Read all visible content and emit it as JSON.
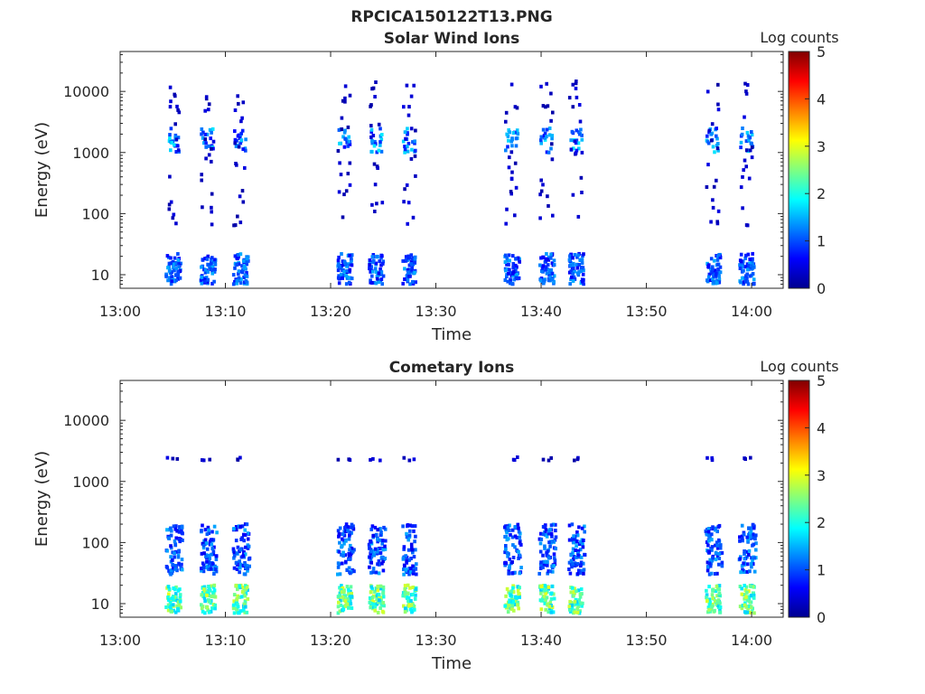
{
  "figure_title": "RPCICA150122T13.PNG",
  "chart_data": [
    {
      "type": "heatmap",
      "title": "Solar Wind Ions",
      "xlabel": "Time",
      "ylabel": "Energy (eV)",
      "y_scale": "log",
      "ylim": [
        6,
        45000
      ],
      "xlim": [
        "13:00",
        "14:03"
      ],
      "x_ticks": [
        "13:00",
        "13:10",
        "13:20",
        "13:30",
        "13:40",
        "13:50",
        "14:00"
      ],
      "y_ticks": [
        "10",
        "100",
        "1000",
        "10000"
      ],
      "colorbar": {
        "label": "Log counts",
        "range": [
          0,
          5
        ],
        "ticks": [
          "0",
          "1",
          "2",
          "3",
          "4",
          "5"
        ],
        "colormap": "jet"
      },
      "grid": false,
      "scans": [
        {
          "start": "13:04",
          "end": "13:13",
          "bursts": [
            "13:04.5",
            "13:07.8",
            "13:10.9"
          ]
        },
        {
          "start": "13:20",
          "end": "13:28",
          "bursts": [
            "13:20.8",
            "13:23.8",
            "13:27.0"
          ]
        },
        {
          "start": "13:35",
          "end": "13:45",
          "bursts": [
            "13:36.7",
            "13:40.0",
            "13:42.8"
          ]
        },
        {
          "start": "13:54",
          "end": "14:01",
          "bursts": [
            "13:55.8",
            "13:59.0"
          ]
        }
      ],
      "features": [
        {
          "energy_range_eV": [
            7,
            22
          ],
          "log_counts_max": 1.5
        },
        {
          "energy_range_eV": [
            1000,
            2500
          ],
          "log_counts_max": 1.8
        },
        {
          "energy_range_eV": [
            60,
            15000
          ],
          "log_counts_max": 0.5
        }
      ]
    },
    {
      "type": "heatmap",
      "title": "Cometary Ions",
      "xlabel": "Time",
      "ylabel": "Energy (eV)",
      "y_scale": "log",
      "ylim": [
        6,
        45000
      ],
      "xlim": [
        "13:00",
        "14:03"
      ],
      "x_ticks": [
        "13:00",
        "13:10",
        "13:20",
        "13:30",
        "13:40",
        "13:50",
        "14:00"
      ],
      "y_ticks": [
        "10",
        "100",
        "1000",
        "10000"
      ],
      "colorbar": {
        "label": "Log counts",
        "range": [
          0,
          5
        ],
        "ticks": [
          "0",
          "1",
          "2",
          "3",
          "4",
          "5"
        ],
        "colormap": "jet"
      },
      "grid": false,
      "features": [
        {
          "energy_range_eV": [
            7,
            20
          ],
          "log_counts_max": 3.0
        },
        {
          "energy_range_eV": [
            30,
            200
          ],
          "log_counts_max": 1.5
        },
        {
          "energy_range_eV": [
            2200,
            2500
          ],
          "log_counts_max": 0.5
        }
      ]
    }
  ]
}
